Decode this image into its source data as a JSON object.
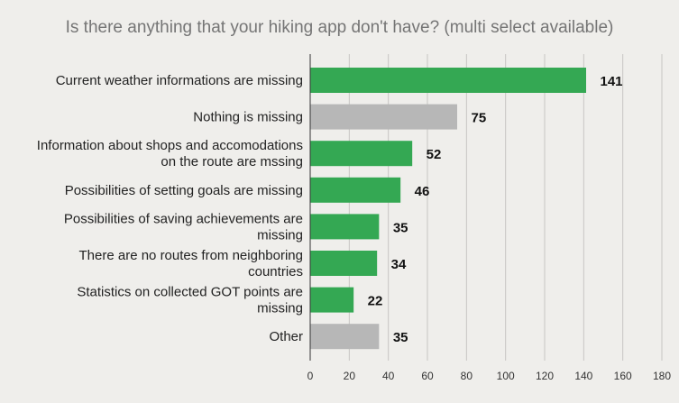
{
  "chart_data": {
    "type": "bar",
    "orientation": "horizontal",
    "title": "Is there anything that your hiking app don't have? (multi select available)",
    "categories": [
      [
        "Current weather informations are missing"
      ],
      [
        "Nothing is missing"
      ],
      [
        "Information about shops and accomodations",
        "on the route are mssing"
      ],
      [
        "Possibilities of setting goals are missing"
      ],
      [
        "Possibilities of saving achievements are",
        "missing"
      ],
      [
        "There are no routes from neighboring",
        "countries"
      ],
      [
        "Statistics on collected GOT points are",
        "missing"
      ],
      [
        "Other"
      ]
    ],
    "values": [
      141,
      75,
      52,
      46,
      35,
      34,
      22,
      35
    ],
    "bar_colors": [
      "#34a853",
      "#b7b7b7",
      "#34a853",
      "#34a853",
      "#34a853",
      "#34a853",
      "#34a853",
      "#b7b7b7"
    ],
    "xlim": [
      0,
      180
    ],
    "xticks": [
      0,
      20,
      40,
      60,
      80,
      100,
      120,
      140,
      160,
      180
    ],
    "grid": true,
    "data_labels": true
  }
}
